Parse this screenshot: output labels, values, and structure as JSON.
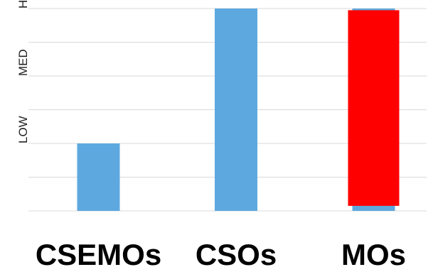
{
  "chart_data": {
    "type": "bar",
    "title": "",
    "xlabel": "",
    "ylabel": "",
    "categories": [
      "CSEMOs",
      "CSOs",
      "MOs"
    ],
    "y_ticks": [
      "LOW",
      "MED",
      "HIGH"
    ],
    "ylim": [
      0,
      6
    ],
    "grid": true,
    "legend": "none",
    "series": [
      {
        "values": [
          2,
          6,
          6
        ],
        "color": "#5DA9DF"
      }
    ],
    "overlay": {
      "category": "MOs",
      "y_range": [
        0.15,
        5.95
      ],
      "color": "#FF0000"
    }
  }
}
